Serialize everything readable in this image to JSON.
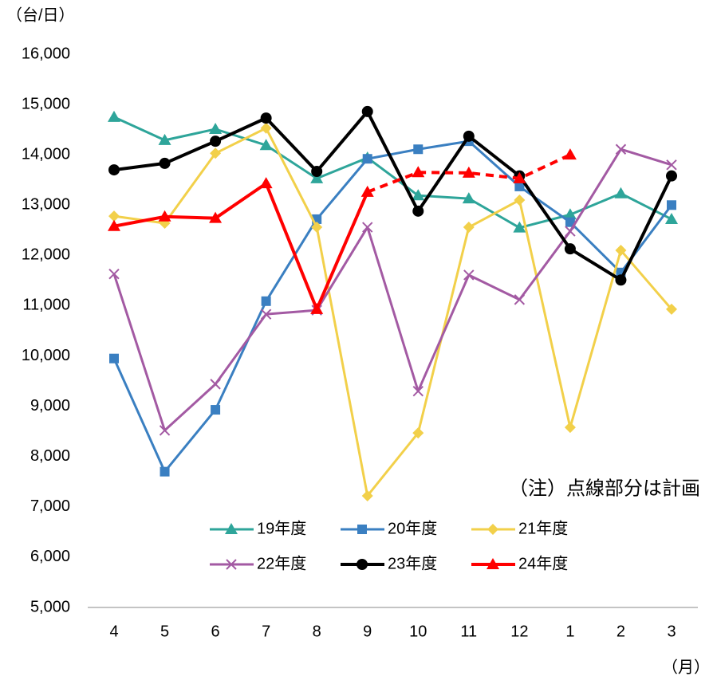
{
  "chart_data": {
    "type": "line",
    "unit_label": "（台/日）",
    "x_unit_label": "（月）",
    "annotation": "（注）点線部分は計画",
    "categories": [
      "4",
      "5",
      "6",
      "7",
      "8",
      "9",
      "10",
      "11",
      "12",
      "1",
      "2",
      "3"
    ],
    "ylim": [
      5000,
      16000
    ],
    "yticks": [
      {
        "value": 5000,
        "label": "5,000"
      },
      {
        "value": 6000,
        "label": "6,000"
      },
      {
        "value": 7000,
        "label": "7,000"
      },
      {
        "value": 8000,
        "label": "8,000"
      },
      {
        "value": 9000,
        "label": "9,000"
      },
      {
        "value": 10000,
        "label": "10,000"
      },
      {
        "value": 11000,
        "label": "11,000"
      },
      {
        "value": 12000,
        "label": "12,000"
      },
      {
        "value": 13000,
        "label": "13,000"
      },
      {
        "value": 14000,
        "label": "14,000"
      },
      {
        "value": 15000,
        "label": "15,000"
      },
      {
        "value": 16000,
        "label": "16,000"
      }
    ],
    "series": [
      {
        "name": "19年度",
        "color": "#2ea59a",
        "marker": "triangle",
        "values": [
          14750,
          14290,
          14510,
          14190,
          13530,
          13940,
          13190,
          13130,
          12550,
          12810,
          13230,
          12720
        ]
      },
      {
        "name": "20年度",
        "color": "#3a7fc1",
        "marker": "square",
        "values": [
          9950,
          7700,
          8930,
          11090,
          12720,
          13920,
          14110,
          14270,
          13370,
          12660,
          11660,
          13000
        ]
      },
      {
        "name": "21年度",
        "color": "#f2d04a",
        "marker": "diamond",
        "values": [
          12780,
          12640,
          14030,
          14530,
          12560,
          7220,
          8470,
          12560,
          13100,
          8580,
          12100,
          10930
        ]
      },
      {
        "name": "22年度",
        "color": "#a35aa3",
        "marker": "cross",
        "values": [
          11630,
          8520,
          9440,
          10830,
          10910,
          12560,
          9300,
          11610,
          11120,
          12480,
          14110,
          13800
        ]
      },
      {
        "name": "23年度",
        "color": "#000000",
        "marker": "circle",
        "values": [
          13700,
          13830,
          14270,
          14730,
          13670,
          14860,
          12880,
          14370,
          13580,
          12130,
          11510,
          13580
        ]
      },
      {
        "name": "24年度",
        "color": "#ff0000",
        "marker": "triangle",
        "dash_from": 5,
        "values": [
          12580,
          12770,
          12740,
          13430,
          10930,
          13260,
          13650,
          13640,
          13530,
          14000,
          null,
          null
        ]
      }
    ]
  }
}
